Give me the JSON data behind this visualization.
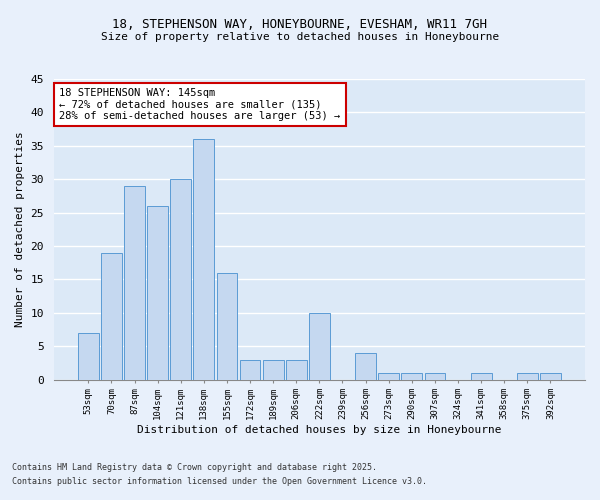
{
  "title1": "18, STEPHENSON WAY, HONEYBOURNE, EVESHAM, WR11 7GH",
  "title2": "Size of property relative to detached houses in Honeybourne",
  "xlabel": "Distribution of detached houses by size in Honeybourne",
  "ylabel": "Number of detached properties",
  "categories": [
    "53sqm",
    "70sqm",
    "87sqm",
    "104sqm",
    "121sqm",
    "138sqm",
    "155sqm",
    "172sqm",
    "189sqm",
    "206sqm",
    "222sqm",
    "239sqm",
    "256sqm",
    "273sqm",
    "290sqm",
    "307sqm",
    "324sqm",
    "341sqm",
    "358sqm",
    "375sqm",
    "392sqm"
  ],
  "values": [
    7,
    19,
    29,
    26,
    30,
    36,
    16,
    3,
    3,
    3,
    10,
    0,
    4,
    1,
    1,
    1,
    0,
    1,
    0,
    1,
    1
  ],
  "bar_color": "#c5d8f0",
  "bar_edge_color": "#5b9bd5",
  "annotation_text": "18 STEPHENSON WAY: 145sqm\n← 72% of detached houses are smaller (135)\n28% of semi-detached houses are larger (53) →",
  "annotation_box_color": "#ffffff",
  "annotation_box_edge": "#cc0000",
  "ylim": [
    0,
    45
  ],
  "yticks": [
    0,
    5,
    10,
    15,
    20,
    25,
    30,
    35,
    40,
    45
  ],
  "bg_color": "#dce9f7",
  "grid_color": "#ffffff",
  "fig_bg_color": "#e8f0fb",
  "footer1": "Contains HM Land Registry data © Crown copyright and database right 2025.",
  "footer2": "Contains public sector information licensed under the Open Government Licence v3.0."
}
